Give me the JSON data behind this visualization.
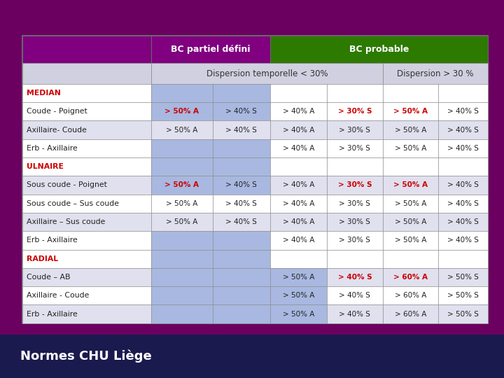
{
  "bg_color": "#6b0060",
  "footer_color": "#1a1a4e",
  "header1_color": "#800080",
  "header2_color": "#2d7a00",
  "header_text_color": "#ffffff",
  "subheader_bg": "#d0d0e0",
  "subheader_text_color": "#333333",
  "row_white": "#ffffff",
  "row_blue": "#a8b8e0",
  "row_lavender": "#e0e0ee",
  "bold_red": "#cc0000",
  "normal_black": "#222222",
  "footer_text": "Normes CHU Liège",
  "footer_text_color": "#ffffff",
  "title_row1": "BC partiel défini",
  "title_row2": "BC probable",
  "sub1": "Dispersion temporelle < 30%",
  "sub2": "Dispersion > 30 %",
  "rows": [
    {
      "label": "MEDIAN",
      "label_bold": true,
      "label_color": "#cc0000",
      "is_header": true,
      "c1": "",
      "c2": "",
      "c3": "",
      "c4": "",
      "c5": "",
      "c6": "",
      "c1b": false,
      "c2b": false,
      "c3b": false,
      "c4b": false,
      "c5b": false,
      "c6b": false,
      "c1_color": "#222222",
      "c2_color": "#222222",
      "c3_color": "#222222",
      "c4_color": "#222222",
      "c5_color": "#222222",
      "c6_color": "#222222",
      "blue_cols": [
        true,
        true,
        false,
        false,
        false,
        false
      ]
    },
    {
      "label": "Coude - Poignet",
      "label_bold": false,
      "label_color": "#222222",
      "is_header": false,
      "c1": "> 50% A",
      "c2": "> 40% S",
      "c3": "> 40% A",
      "c4": "> 30% S",
      "c5": "> 50% A",
      "c6": "> 40% S",
      "c1b": true,
      "c2b": false,
      "c3b": false,
      "c4b": true,
      "c5b": true,
      "c6b": false,
      "c1_color": "#cc0000",
      "c2_color": "#222222",
      "c3_color": "#222222",
      "c4_color": "#cc0000",
      "c5_color": "#cc0000",
      "c6_color": "#222222",
      "blue_cols": [
        true,
        true,
        false,
        false,
        false,
        false
      ]
    },
    {
      "label": "Axillaire- Coude",
      "label_bold": false,
      "label_color": "#222222",
      "is_header": false,
      "c1": "> 50% A",
      "c2": "> 40% S",
      "c3": "> 40% A",
      "c4": "> 30% S",
      "c5": "> 50% A",
      "c6": "> 40% S",
      "c1b": false,
      "c2b": false,
      "c3b": false,
      "c4b": false,
      "c5b": false,
      "c6b": false,
      "c1_color": "#222222",
      "c2_color": "#222222",
      "c3_color": "#222222",
      "c4_color": "#222222",
      "c5_color": "#222222",
      "c6_color": "#222222",
      "blue_cols": [
        false,
        false,
        false,
        false,
        false,
        false
      ]
    },
    {
      "label": "Erb - Axillaire",
      "label_bold": false,
      "label_color": "#222222",
      "is_header": false,
      "c1": "",
      "c2": "",
      "c3": "> 40% A",
      "c4": "> 30% S",
      "c5": "> 50% A",
      "c6": "> 40% S",
      "c1b": false,
      "c2b": false,
      "c3b": false,
      "c4b": false,
      "c5b": false,
      "c6b": false,
      "c1_color": "#222222",
      "c2_color": "#222222",
      "c3_color": "#222222",
      "c4_color": "#222222",
      "c5_color": "#222222",
      "c6_color": "#222222",
      "blue_cols": [
        true,
        true,
        false,
        false,
        false,
        false
      ]
    },
    {
      "label": "ULNAIRE",
      "label_bold": true,
      "label_color": "#cc0000",
      "is_header": true,
      "c1": "",
      "c2": "",
      "c3": "",
      "c4": "",
      "c5": "",
      "c6": "",
      "c1b": false,
      "c2b": false,
      "c3b": false,
      "c4b": false,
      "c5b": false,
      "c6b": false,
      "c1_color": "#222222",
      "c2_color": "#222222",
      "c3_color": "#222222",
      "c4_color": "#222222",
      "c5_color": "#222222",
      "c6_color": "#222222",
      "blue_cols": [
        true,
        true,
        false,
        false,
        false,
        false
      ]
    },
    {
      "label": "Sous coude - Poignet",
      "label_bold": false,
      "label_color": "#222222",
      "is_header": false,
      "c1": "> 50% A",
      "c2": "> 40% S",
      "c3": "> 40% A",
      "c4": "> 30% S",
      "c5": "> 50% A",
      "c6": "> 40% S",
      "c1b": true,
      "c2b": false,
      "c3b": false,
      "c4b": true,
      "c5b": true,
      "c6b": false,
      "c1_color": "#cc0000",
      "c2_color": "#222222",
      "c3_color": "#222222",
      "c4_color": "#cc0000",
      "c5_color": "#cc0000",
      "c6_color": "#222222",
      "blue_cols": [
        true,
        true,
        false,
        false,
        false,
        false
      ]
    },
    {
      "label": "Sous coude – Sus coude",
      "label_bold": false,
      "label_color": "#222222",
      "is_header": false,
      "c1": "> 50% A",
      "c2": "> 40% S",
      "c3": "> 40% A",
      "c4": "> 30% S",
      "c5": "> 50% A",
      "c6": "> 40% S",
      "c1b": false,
      "c2b": false,
      "c3b": false,
      "c4b": false,
      "c5b": false,
      "c6b": false,
      "c1_color": "#222222",
      "c2_color": "#222222",
      "c3_color": "#222222",
      "c4_color": "#222222",
      "c5_color": "#222222",
      "c6_color": "#222222",
      "blue_cols": [
        false,
        false,
        false,
        false,
        false,
        false
      ]
    },
    {
      "label": "Axillaire – Sus coude",
      "label_bold": false,
      "label_color": "#222222",
      "is_header": false,
      "c1": "> 50% A",
      "c2": "> 40% S",
      "c3": "> 40% A",
      "c4": "> 30% S",
      "c5": "> 50% A",
      "c6": "> 40% S",
      "c1b": false,
      "c2b": false,
      "c3b": false,
      "c4b": false,
      "c5b": false,
      "c6b": false,
      "c1_color": "#222222",
      "c2_color": "#222222",
      "c3_color": "#222222",
      "c4_color": "#222222",
      "c5_color": "#222222",
      "c6_color": "#222222",
      "blue_cols": [
        false,
        false,
        false,
        false,
        false,
        false
      ]
    },
    {
      "label": "Erb - Axillaire",
      "label_bold": false,
      "label_color": "#222222",
      "is_header": false,
      "c1": "",
      "c2": "",
      "c3": "> 40% A",
      "c4": "> 30% S",
      "c5": "> 50% A",
      "c6": "> 40% S",
      "c1b": false,
      "c2b": false,
      "c3b": false,
      "c4b": false,
      "c5b": false,
      "c6b": false,
      "c1_color": "#222222",
      "c2_color": "#222222",
      "c3_color": "#222222",
      "c4_color": "#222222",
      "c5_color": "#222222",
      "c6_color": "#222222",
      "blue_cols": [
        true,
        true,
        false,
        false,
        false,
        false
      ]
    },
    {
      "label": "RADIAL",
      "label_bold": true,
      "label_color": "#cc0000",
      "is_header": true,
      "c1": "",
      "c2": "",
      "c3": "",
      "c4": "",
      "c5": "",
      "c6": "",
      "c1b": false,
      "c2b": false,
      "c3b": false,
      "c4b": false,
      "c5b": false,
      "c6b": false,
      "c1_color": "#222222",
      "c2_color": "#222222",
      "c3_color": "#222222",
      "c4_color": "#222222",
      "c5_color": "#222222",
      "c6_color": "#222222",
      "blue_cols": [
        true,
        true,
        false,
        false,
        false,
        false
      ]
    },
    {
      "label": "Coude – AB",
      "label_bold": false,
      "label_color": "#222222",
      "is_header": false,
      "c1": "",
      "c2": "",
      "c3": "> 50% A",
      "c4": "> 40% S",
      "c5": "> 60% A",
      "c6": "> 50% S",
      "c1b": false,
      "c2b": false,
      "c3b": false,
      "c4b": true,
      "c5b": true,
      "c6b": false,
      "c1_color": "#222222",
      "c2_color": "#222222",
      "c3_color": "#222222",
      "c4_color": "#cc0000",
      "c5_color": "#cc0000",
      "c6_color": "#222222",
      "blue_cols": [
        true,
        true,
        true,
        false,
        false,
        false
      ]
    },
    {
      "label": "Axillaire - Coude",
      "label_bold": false,
      "label_color": "#222222",
      "is_header": false,
      "c1": "",
      "c2": "",
      "c3": "> 50% A",
      "c4": "> 40% S",
      "c5": "> 60% A",
      "c6": "> 50% S",
      "c1b": false,
      "c2b": false,
      "c3b": false,
      "c4b": false,
      "c5b": false,
      "c6b": false,
      "c1_color": "#222222",
      "c2_color": "#222222",
      "c3_color": "#222222",
      "c4_color": "#222222",
      "c5_color": "#222222",
      "c6_color": "#222222",
      "blue_cols": [
        true,
        true,
        true,
        false,
        false,
        false
      ]
    },
    {
      "label": "Erb - Axillaire",
      "label_bold": false,
      "label_color": "#222222",
      "is_header": false,
      "c1": "",
      "c2": "",
      "c3": "> 50% A",
      "c4": "> 40% S",
      "c5": "> 60% A",
      "c6": "> 50% S",
      "c1b": false,
      "c2b": false,
      "c3b": false,
      "c4b": false,
      "c5b": false,
      "c6b": false,
      "c1_color": "#222222",
      "c2_color": "#222222",
      "c3_color": "#222222",
      "c4_color": "#222222",
      "c5_color": "#222222",
      "c6_color": "#222222",
      "blue_cols": [
        true,
        true,
        true,
        false,
        false,
        false
      ]
    }
  ],
  "row_bg_pattern": [
    "header",
    "white",
    "lavender",
    "white",
    "header",
    "white",
    "lavender",
    "white",
    "white",
    "header",
    "white",
    "lavender",
    "white"
  ]
}
